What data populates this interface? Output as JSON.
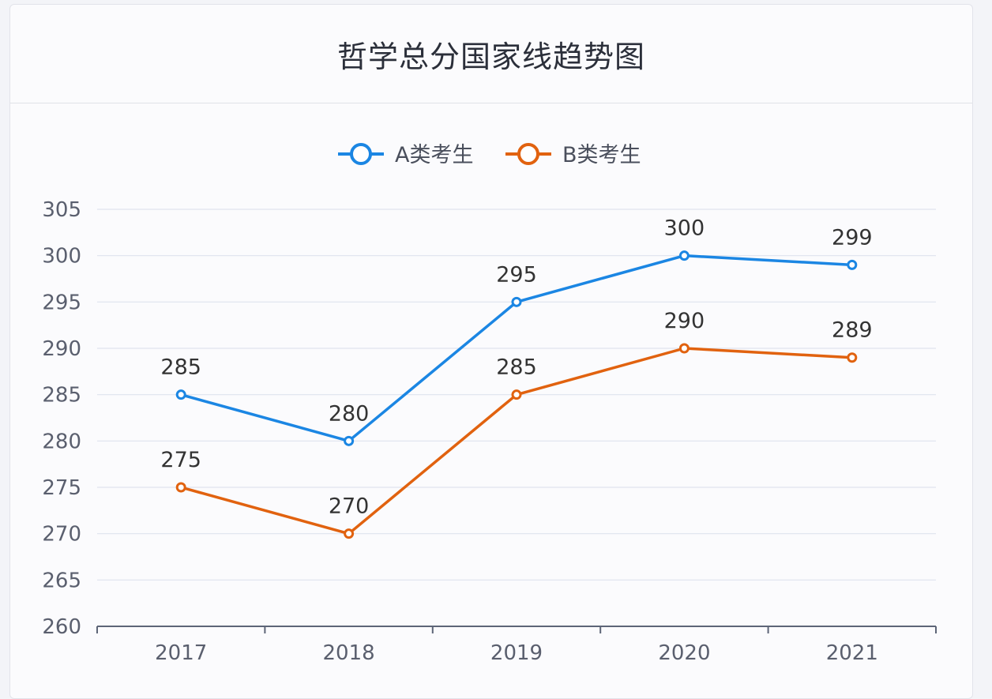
{
  "title": "哲学总分国家线趋势图",
  "colors": {
    "series_a": "#1b86e3",
    "series_b": "#e1620f",
    "grid": "#dfe3ee",
    "axis": "#5d6577"
  },
  "chart_data": {
    "type": "line",
    "title": "哲学总分国家线趋势图",
    "xlabel": "",
    "ylabel": "",
    "categories": [
      "2017",
      "2018",
      "2019",
      "2020",
      "2021"
    ],
    "ylim": [
      260,
      305
    ],
    "yticks": [
      260,
      265,
      270,
      275,
      280,
      285,
      290,
      295,
      300,
      305
    ],
    "grid": true,
    "legend_position": "top-center",
    "series": [
      {
        "name": "A类考生",
        "values": [
          285,
          280,
          295,
          300,
          299
        ],
        "color": "#1b86e3"
      },
      {
        "name": "B类考生",
        "values": [
          275,
          270,
          285,
          290,
          289
        ],
        "color": "#e1620f"
      }
    ]
  }
}
